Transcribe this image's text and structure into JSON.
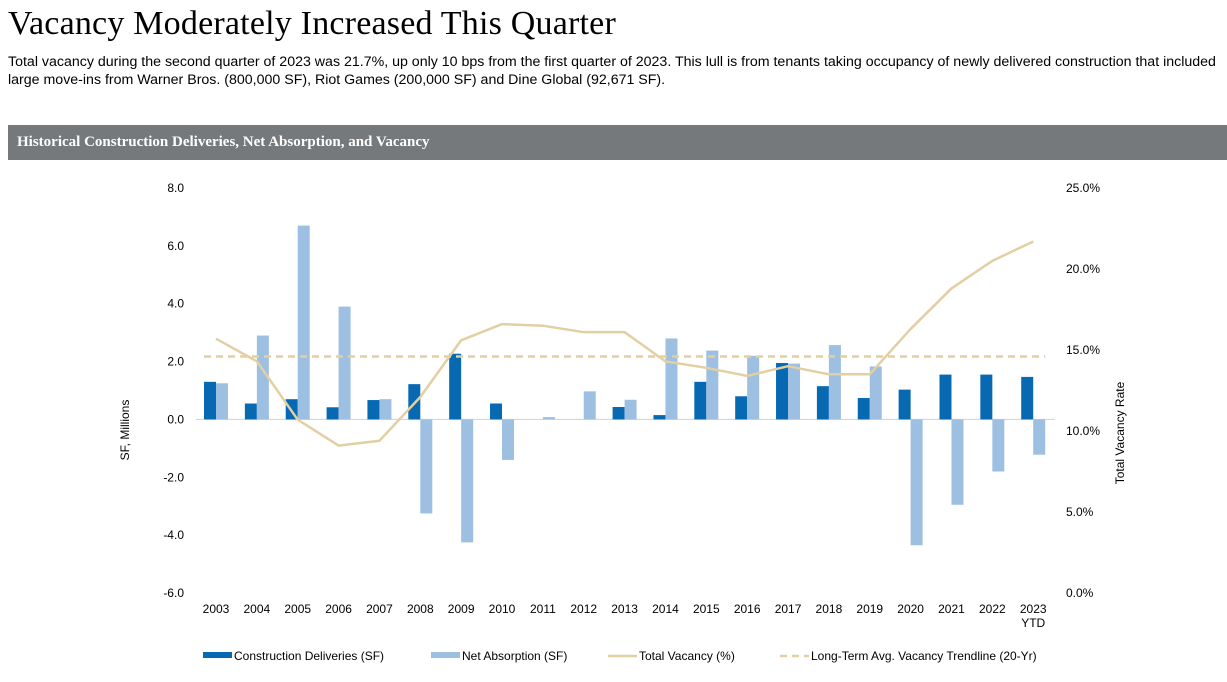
{
  "headline": "Vacancy Moderately Increased This Quarter",
  "intro": "Total vacancy during the second quarter of 2023 was 21.7%, up only 10 bps from the first quarter of 2023. This lull is from tenants taking occupancy of newly delivered construction that included large move-ins from Warner Bros. (800,000 SF), Riot Games (200,000 SF) and Dine Global (92,671 SF).",
  "chart_header": "Historical Construction Deliveries, Net Absorption, and Vacancy",
  "colors": {
    "deliveries": "#0869b3",
    "absorption": "#9dbfe1",
    "vacancy": "#e2cfa2",
    "trendline": "#e2cfa2",
    "header_bg": "#76797c"
  },
  "chart_data": {
    "type": "bar",
    "title": "Historical Construction Deliveries, Net Absorption, and Vacancy",
    "categories": [
      "2003",
      "2004",
      "2005",
      "2006",
      "2007",
      "2008",
      "2009",
      "2010",
      "2011",
      "2012",
      "2013",
      "2014",
      "2015",
      "2016",
      "2017",
      "2018",
      "2019",
      "2020",
      "2021",
      "2022",
      "2023 YTD"
    ],
    "category_lines": [
      [
        "2003"
      ],
      [
        "2004"
      ],
      [
        "2005"
      ],
      [
        "2006"
      ],
      [
        "2007"
      ],
      [
        "2008"
      ],
      [
        "2009"
      ],
      [
        "2010"
      ],
      [
        "2011"
      ],
      [
        "2012"
      ],
      [
        "2013"
      ],
      [
        "2014"
      ],
      [
        "2015"
      ],
      [
        "2016"
      ],
      [
        "2017"
      ],
      [
        "2018"
      ],
      [
        "2019"
      ],
      [
        "2020"
      ],
      [
        "2021"
      ],
      [
        "2022"
      ],
      [
        "2023",
        "YTD"
      ]
    ],
    "ylabel": "SF, Millions",
    "y2label": "Total Vacancy Rate",
    "ylim": [
      -6,
      8
    ],
    "y_ticks": [
      8,
      6,
      4,
      2,
      0,
      -2,
      -4,
      -6
    ],
    "y_tick_labels": [
      "8.0",
      "6.0",
      "4.0",
      "2.0",
      "0.0",
      "-2.0",
      "-4.0",
      "-6.0"
    ],
    "y2lim": [
      0,
      25
    ],
    "y2_ticks": [
      25,
      20,
      15,
      10,
      5,
      0
    ],
    "y2_tick_labels": [
      "25.0%",
      "20.0%",
      "15.0%",
      "10.0%",
      "5.0%",
      "0.0%"
    ],
    "grid": false,
    "legend_position": "bottom",
    "series": [
      {
        "name": "Construction Deliveries (SF)",
        "type": "bar",
        "axis": "left",
        "values": [
          1.3,
          0.55,
          0.7,
          0.42,
          0.67,
          1.22,
          2.27,
          0.55,
          0.0,
          0.0,
          0.43,
          0.15,
          1.3,
          0.8,
          1.95,
          1.15,
          0.74,
          1.03,
          1.55,
          1.55,
          1.47
        ]
      },
      {
        "name": "Net Absorption (SF)",
        "type": "bar",
        "axis": "left",
        "values": [
          1.25,
          2.9,
          6.7,
          3.9,
          0.7,
          -3.25,
          -4.25,
          -1.4,
          0.08,
          0.97,
          0.68,
          2.8,
          2.38,
          2.2,
          1.93,
          2.57,
          1.83,
          -4.35,
          -2.95,
          -1.8,
          -1.22
        ]
      },
      {
        "name": "Total Vacancy (%)",
        "type": "line",
        "axis": "right",
        "values": [
          15.7,
          14.3,
          10.7,
          9.1,
          9.4,
          12.1,
          15.6,
          16.6,
          16.5,
          16.1,
          16.1,
          14.3,
          13.9,
          13.4,
          14.0,
          13.5,
          13.5,
          16.3,
          18.8,
          20.5,
          21.7
        ]
      },
      {
        "name": "Long-Term Avg. Vacancy Trendline (20-Yr)",
        "type": "line",
        "dashed": true,
        "axis": "right",
        "values": [
          14.6,
          14.6,
          14.6,
          14.6,
          14.6,
          14.6,
          14.6,
          14.6,
          14.6,
          14.6,
          14.6,
          14.6,
          14.6,
          14.6,
          14.6,
          14.6,
          14.6,
          14.6,
          14.6,
          14.6,
          14.6
        ]
      }
    ]
  }
}
